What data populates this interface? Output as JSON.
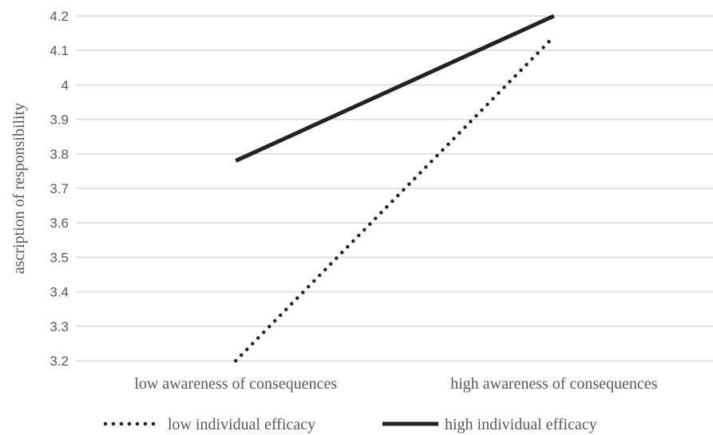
{
  "chart_data": {
    "type": "line",
    "title": "",
    "xlabel": "",
    "ylabel": "ascription of responsibility",
    "categories": [
      "low awareness of consequences",
      "high awareness of consequences"
    ],
    "ylim": [
      3.2,
      4.2
    ],
    "yticks": [
      "3.2",
      "3.3",
      "3.4",
      "3.5",
      "3.6",
      "3.7",
      "3.8",
      "3.9",
      "4",
      "4.1",
      "4.2"
    ],
    "grid": true,
    "legend_position": "bottom",
    "series": [
      {
        "name": "low individual efficacy",
        "values": [
          3.2,
          4.14
        ],
        "style": "dotted",
        "color": "#222222"
      },
      {
        "name": "high individual efficacy",
        "values": [
          3.78,
          4.2
        ],
        "style": "solid",
        "color": "#222222"
      }
    ]
  }
}
